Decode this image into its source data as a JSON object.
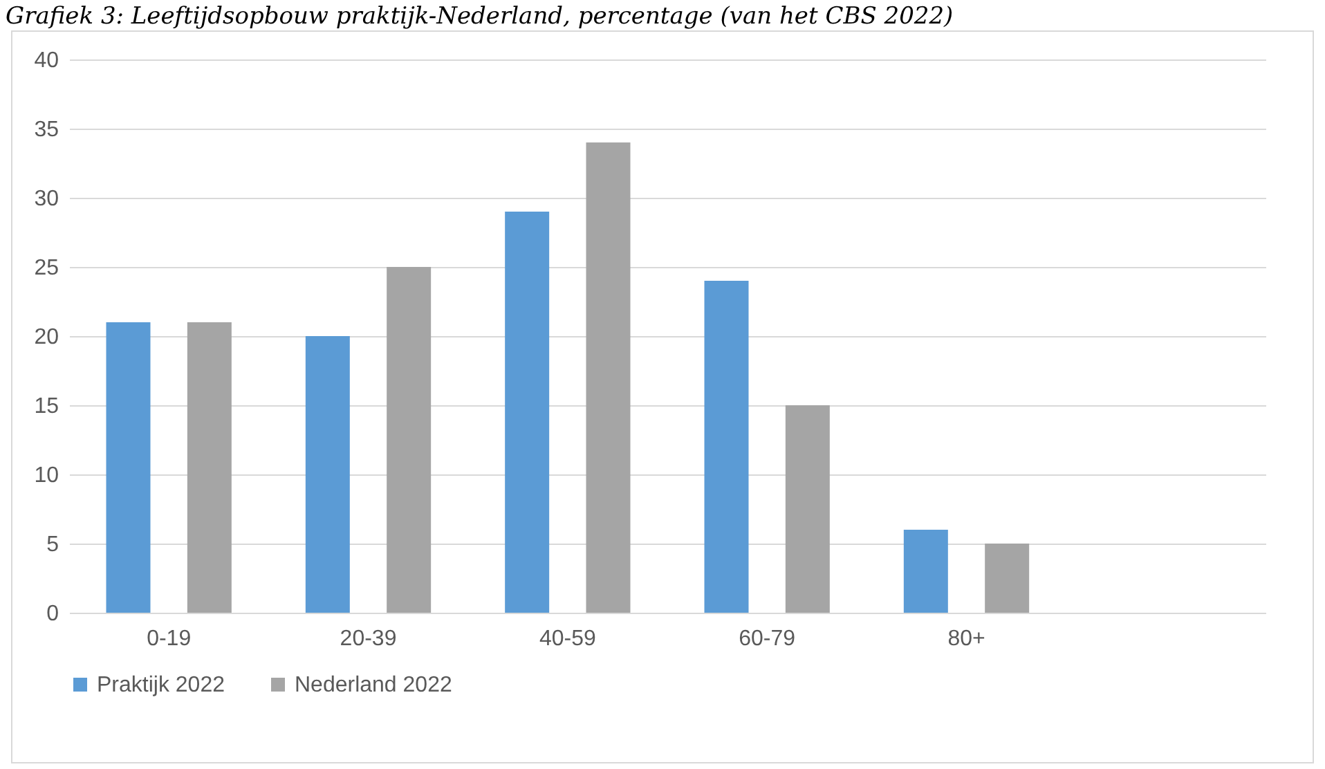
{
  "chart_data": {
    "type": "bar",
    "title": "Grafiek 3: Leeftijdsopbouw praktijk-Nederland, percentage (van het CBS 2022)",
    "categories": [
      "0-19",
      "20-39",
      "40-59",
      "60-79",
      "80+",
      null
    ],
    "series": [
      {
        "name": "Praktijk 2022",
        "color": "#5b9bd5",
        "values": [
          21,
          20,
          29,
          24,
          6,
          null
        ]
      },
      {
        "name": "Nederland 2022",
        "color": "#a5a5a5",
        "values": [
          21,
          25,
          34,
          15,
          5,
          null
        ]
      }
    ],
    "ylim": [
      0,
      40
    ],
    "yticks": [
      0,
      5,
      10,
      15,
      20,
      25,
      30,
      35,
      40
    ],
    "grid": "y",
    "legend": "bottom"
  }
}
